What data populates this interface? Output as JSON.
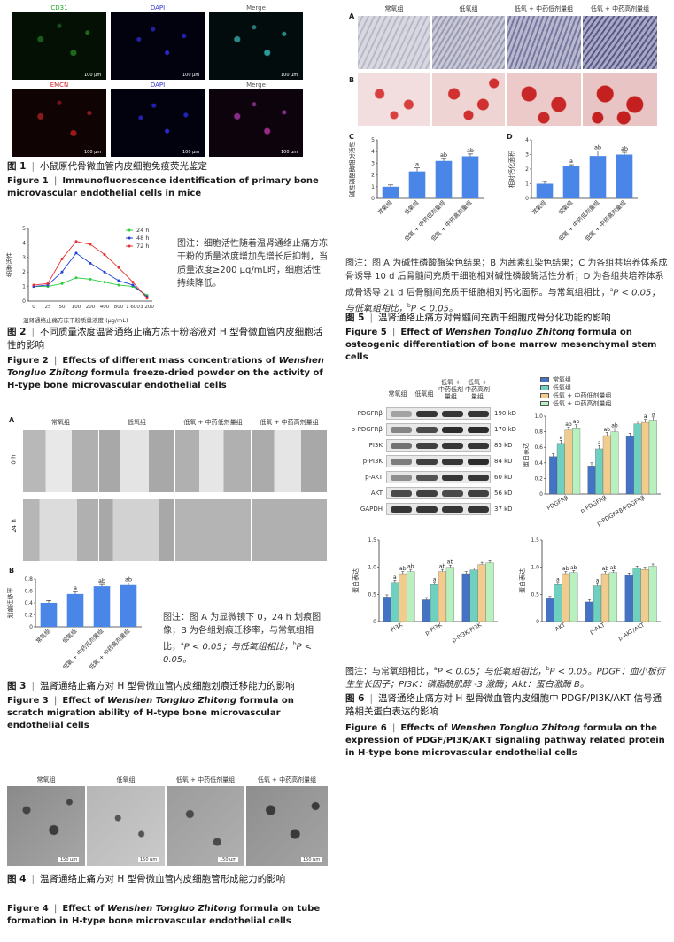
{
  "fig1": {
    "headers_row1": [
      "CD31",
      "DAPI",
      "Merge"
    ],
    "headers_row2": [
      "EMCN",
      "DAPI",
      "Merge"
    ],
    "scale": "100 μm",
    "caption_cn_num": "图 1",
    "caption_cn": "小鼠原代骨微血管内皮细胞免疫荧光鉴定",
    "caption_en_num": "Figure 1",
    "caption_en": "Immunofluorescence identification of primary bone microvascular endothelial cells in mice"
  },
  "fig2": {
    "ylabel": "细胞活性",
    "xlabel": "温肾通络止痛方冻干粉质量浓度 (μg/mL)",
    "note": "图注：细胞活性随着温肾通络止痛方冻干粉的质量浓度增加先增长后抑制，当质量浓度≥200 μg/mL时，细胞活性持续降低。",
    "caption_cn_num": "图 2",
    "caption_cn": "不同质量浓度温肾通络止痛方冻干粉溶液对 H 型骨微血管内皮细胞活性的影响",
    "caption_en_num": "Figure 2",
    "caption_en_pre": "Effects of different mass concentrations of ",
    "caption_en_it": "Wenshen Tongluo Zhitong",
    "caption_en_post": " formula freeze-dried powder on the activity of H-type bone microvascular endothelial cells"
  },
  "fig3": {
    "panel_a": "A",
    "panel_b": "B",
    "groups": [
      "常氧组",
      "低氧组",
      "低氧 + 中药低剂量组",
      "低氧 + 中药高剂量组"
    ],
    "rows": [
      "0 h",
      "24 h"
    ],
    "ylabel": "划痕迁移率",
    "note_1": "图注：图 A 为显微镜下 0，24 h 划痕图像；B 为各组划痕迁移率，与常氧组相比，",
    "note_2": "P < 0.05；与低氧组相比，",
    "note_3": "P < 0.05。",
    "caption_cn_num": "图 3",
    "caption_cn": "温肾通络止痛方对 H 型骨微血管内皮细胞划痕迁移能力的影响",
    "caption_en_num": "Figure 3",
    "caption_en_pre": "Effect of ",
    "caption_en_it": "Wenshen Tongluo Zhitong",
    "caption_en_post": " formula on scratch migration ability of H-type bone microvascular endothelial cells"
  },
  "fig4": {
    "groups": [
      "常氧组",
      "低氧组",
      "低氧 + 中药低剂量组",
      "低氧 + 中药高剂量组"
    ],
    "scale": "150 μm",
    "caption_cn_num": "图 4",
    "caption_cn": "温肾通络止痛方对 H 型骨微血管内皮细胞管形成能力的影响",
    "caption_en_num": "Figure 4",
    "caption_en_pre": "Effect of ",
    "caption_en_it": "Wenshen Tongluo Zhitong",
    "caption_en_post": " formula on tube formation in H-type bone microvascular endothelial cells"
  },
  "fig5": {
    "panel_a": "A",
    "panel_b": "B",
    "panel_c": "C",
    "panel_d": "D",
    "groups": [
      "常氧组",
      "低氧组",
      "低氧 + 中药低剂量组",
      "低氧 + 中药高剂量组"
    ],
    "ylabel_c": "碱性磷酸酶相对活性",
    "ylabel_d": "相对钙化面积",
    "note": "图注：图 A 为碱性磷酸酶染色结果；B 为茜素红染色结果；C 为各组共培养体系成骨诱导 10 d 后骨髓间充质干细胞相对碱性磷酸酶活性分析；D 为各组共培养体系成骨诱导 21 d 后骨髓间充质干细胞相对钙化面积。与常氧组相比，",
    "note_2": "P < 0.05；与低氧组相比，",
    "note_3": "P < 0.05。",
    "caption_cn_num": "图 5",
    "caption_cn": "温肾通络止痛方对骨髓间充质干细胞成骨分化功能的影响",
    "caption_en_num": "Figure 5",
    "caption_en_pre": "Effect of ",
    "caption_en_it": "Wenshen Tongluo Zhitong",
    "caption_en_post": " formula on osteogenic differentiation of bone marrow mesenchymal stem cells"
  },
  "fig6": {
    "blot_groups": [
      "常氧组",
      "低氧组",
      "低氧 + 中药低剂量组",
      "低氧 + 中药高剂量组"
    ],
    "proteins": [
      "PDGFRβ",
      "p-PDGFRβ",
      "PI3K",
      "p-PI3K",
      "p-AKT",
      "AKT",
      "GAPDH"
    ],
    "sizes": [
      "190 kD",
      "170 kD",
      "85 kD",
      "84 kD",
      "60 kD",
      "56 kD",
      "37 kD"
    ],
    "legend": [
      "常氧组",
      "低氧组",
      "低氧 + 中药低剂量组",
      "低氧 + 中药高剂量组"
    ],
    "ylabel": "蛋白表达",
    "note_1": "图注：与常氧组相比，",
    "note_2": "P < 0.05；与低氧组相比，",
    "note_3": "P < 0.05。PDGF：血小板衍生生长因子；PI3K：磷脂酰肌醇 -3 激酶；Akt：蛋白激酶 B。",
    "caption_cn_num": "图 6",
    "caption_cn": "温肾通络止痛方对 H 型骨微血管内皮细胞中 PDGF/PI3K/AKT 信号通路相关蛋白表达的影响",
    "caption_en_num": "Figure 6",
    "caption_en_pre": "Effects of ",
    "caption_en_it": "Wenshen Tongluo Zhitong",
    "caption_en_post": " formula on the expression of PDGF/PI3K/AKT signaling pathway related protein in H-type bone microvascular endothelial cells"
  },
  "colors": {
    "bar_blue": "#4a86e8",
    "legend": [
      "#4472c4",
      "#6fd0c0",
      "#f2cc8f",
      "#b9f0c0"
    ],
    "line_colors": [
      "#2ecc40",
      "#1f3fd6",
      "#e83030"
    ]
  },
  "chart_data": [
    {
      "type": "line",
      "id": "fig2",
      "x": [
        "0",
        "25",
        "50",
        "100",
        "200",
        "400",
        "800",
        "1 600",
        "3 200"
      ],
      "ylim": [
        0,
        5
      ],
      "yticks": [
        "0",
        "1",
        "2",
        "3",
        "4",
        "5"
      ],
      "series": [
        {
          "name": "24 h",
          "values": [
            1.0,
            1.0,
            1.2,
            1.6,
            1.5,
            1.3,
            1.1,
            1.0,
            0.4
          ]
        },
        {
          "name": "48 h",
          "values": [
            1.0,
            1.1,
            2.0,
            3.3,
            2.6,
            2.0,
            1.4,
            1.1,
            0.3
          ]
        },
        {
          "name": "72 h",
          "values": [
            1.1,
            1.2,
            2.9,
            4.1,
            3.9,
            3.2,
            2.3,
            1.3,
            0.2
          ]
        }
      ],
      "xlabel": "温肾通络止痛方冻干粉质量浓度 (μg/mL)",
      "ylabel": "细胞活性",
      "legend": "top-right"
    },
    {
      "type": "bar",
      "id": "fig3b",
      "categories": [
        "常氧组",
        "低氧组",
        "低氧 + 中药低剂量组",
        "低氧 + 中药高剂量组"
      ],
      "values": [
        0.4,
        0.55,
        0.68,
        0.7
      ],
      "errors": [
        0.04,
        0.04,
        0.03,
        0.03
      ],
      "labels": [
        "",
        "a",
        "ab",
        "ab"
      ],
      "ylim": [
        0,
        0.8
      ],
      "yticks": [
        "0",
        "0.2",
        "0.4",
        "0.6",
        "0.8"
      ],
      "ylabel": "划痕迁移率"
    },
    {
      "type": "bar",
      "id": "fig5c",
      "categories": [
        "常氧组",
        "低氧组",
        "低氧 + 中药低剂量组",
        "低氧 + 中药高剂量组"
      ],
      "values": [
        1.0,
        2.3,
        3.2,
        3.6
      ],
      "errors": [
        0.15,
        0.3,
        0.2,
        0.2
      ],
      "labels": [
        "",
        "a",
        "ab",
        "ab"
      ],
      "ylim": [
        0,
        5
      ],
      "yticks": [
        "0",
        "1",
        "2",
        "3",
        "4",
        "5"
      ],
      "ylabel": "碱性磷酸酶相对活性"
    },
    {
      "type": "bar",
      "id": "fig5d",
      "categories": [
        "常氧组",
        "低氧组",
        "低氧 + 中药低剂量组",
        "低氧 + 中药高剂量组"
      ],
      "values": [
        1.0,
        2.2,
        2.9,
        3.0
      ],
      "errors": [
        0.15,
        0.1,
        0.35,
        0.15
      ],
      "labels": [
        "",
        "a",
        "ab",
        "ab"
      ],
      "ylim": [
        0,
        4
      ],
      "yticks": [
        "0",
        "1",
        "2",
        "3",
        "4"
      ],
      "ylabel": "相对钙化面积"
    },
    {
      "type": "bar",
      "id": "fig6a",
      "categories": [
        "PDGFRβ",
        "p-PDGFRβ",
        "p-PDGFRβ/PDGFRβ"
      ],
      "series": [
        {
          "name": "常氧组",
          "values": [
            0.48,
            0.36,
            0.74
          ]
        },
        {
          "name": "低氧组",
          "values": [
            0.65,
            0.58,
            0.9
          ]
        },
        {
          "name": "低氧 + 中药低剂量组",
          "values": [
            0.82,
            0.75,
            0.92
          ]
        },
        {
          "name": "低氧 + 中药高剂量组",
          "values": [
            0.85,
            0.8,
            0.95
          ]
        }
      ],
      "labels": [
        [
          "",
          "a",
          "ab",
          "ab"
        ],
        [
          "",
          "a",
          "ab",
          "ab"
        ],
        [
          "",
          "",
          "a",
          "a"
        ]
      ],
      "ylim": [
        0,
        1.0
      ],
      "yticks": [
        "0",
        "0.2",
        "0.4",
        "0.6",
        "0.8",
        "1.0"
      ],
      "ylabel": "蛋白表达"
    },
    {
      "type": "bar",
      "id": "fig6b",
      "categories": [
        "PI3K",
        "p-PI3K",
        "p-PI3K/PI3K"
      ],
      "series": [
        {
          "name": "常氧组",
          "values": [
            0.45,
            0.4,
            0.88
          ]
        },
        {
          "name": "低氧组",
          "values": [
            0.72,
            0.68,
            0.95
          ]
        },
        {
          "name": "低氧 + 中药低剂量组",
          "values": [
            0.88,
            0.92,
            1.05
          ]
        },
        {
          "name": "低氧 + 中药高剂量组",
          "values": [
            0.92,
            1.0,
            1.08
          ]
        }
      ],
      "labels": [
        [
          "",
          "a",
          "ab",
          "ab"
        ],
        [
          "",
          "a",
          "ab",
          "ab"
        ],
        [
          "",
          "",
          "",
          ""
        ]
      ],
      "ylim": [
        0,
        1.5
      ],
      "yticks": [
        "0",
        "0.5",
        "1.0",
        "1.5"
      ],
      "ylabel": "蛋白表达"
    },
    {
      "type": "bar",
      "id": "fig6c",
      "categories": [
        "AKT",
        "p-AKT",
        "p-AKT/AKT"
      ],
      "series": [
        {
          "name": "常氧组",
          "values": [
            0.42,
            0.36,
            0.85
          ]
        },
        {
          "name": "低氧组",
          "values": [
            0.68,
            0.66,
            0.98
          ]
        },
        {
          "name": "低氧 + 中药低剂量组",
          "values": [
            0.88,
            0.88,
            0.96
          ]
        },
        {
          "name": "低氧 + 中药高剂量组",
          "values": [
            0.9,
            0.9,
            1.02
          ]
        }
      ],
      "labels": [
        [
          "",
          "a",
          "ab",
          "ab"
        ],
        [
          "",
          "a",
          "ab",
          "ab"
        ],
        [
          "",
          "",
          "",
          ""
        ]
      ],
      "ylim": [
        0,
        1.5
      ],
      "yticks": [
        "0",
        "0.5",
        "1.0",
        "1.5"
      ],
      "ylabel": "蛋白表达"
    }
  ]
}
